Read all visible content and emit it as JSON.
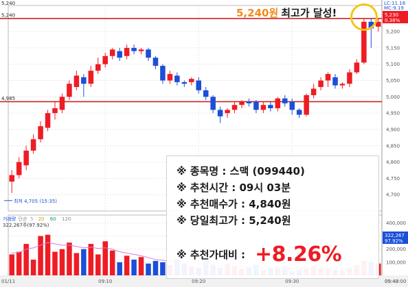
{
  "callout": {
    "price": "5,240원",
    "text": "최고가 달성!"
  },
  "info": {
    "rows": [
      "※ 종목명 : 스맥 (099440)",
      "※ 추천시간 : 09시 03분",
      "※ 추천매수가 : 4,840원",
      "※ 당일최고가 : 5,240원"
    ],
    "return_label": "※ 추천가대비 :",
    "return_value": "+8.26%"
  },
  "header": {
    "right_top": "LC:11.16",
    "right_sub": "MC:9.19",
    "left_top": "5,240"
  },
  "colors": {
    "up": "#ee1c24",
    "down": "#1b4fd8",
    "ref_line": "#cc2222",
    "grid": "#e6e6e6"
  },
  "chart_data": [
    {
      "type": "candlestick",
      "ylim": [
        4650,
        5280
      ],
      "y_ticks": [
        "5,200",
        "5,150",
        "5,100",
        "5,050",
        "5,000",
        "4,950",
        "4,900",
        "4,850",
        "4,800",
        "4,750",
        "4,700"
      ],
      "y_tick_values": [
        5200,
        5150,
        5100,
        5050,
        5000,
        4950,
        4900,
        4850,
        4800,
        4750,
        4700
      ],
      "x_ticks": [
        "01/11",
        "09:10",
        "09:20",
        "09:30",
        "09:40",
        "09:43:00"
      ],
      "x_tick_index": [
        0,
        13,
        26,
        39,
        52,
        60
      ],
      "ref_lines": [
        {
          "value": 5240,
          "label": "5,240"
        },
        {
          "value": 4985,
          "label": "4,985"
        }
      ],
      "right_labels": [
        "5,230",
        "0.38%"
      ],
      "low_annotation": "최저 4,705 (15:35)",
      "low_value": 4705,
      "candles": [
        {
          "o": 4740,
          "c": 4760,
          "h": 4775,
          "l": 4705
        },
        {
          "o": 4760,
          "c": 4800,
          "h": 4815,
          "l": 4750
        },
        {
          "o": 4790,
          "c": 4835,
          "h": 4850,
          "l": 4775
        },
        {
          "o": 4835,
          "c": 4870,
          "h": 4885,
          "l": 4825
        },
        {
          "o": 4870,
          "c": 4910,
          "h": 4925,
          "l": 4860
        },
        {
          "o": 4905,
          "c": 4950,
          "h": 4960,
          "l": 4895
        },
        {
          "o": 4950,
          "c": 4965,
          "h": 4985,
          "l": 4930
        },
        {
          "o": 4960,
          "c": 5000,
          "h": 5010,
          "l": 4950
        },
        {
          "o": 5000,
          "c": 5040,
          "h": 5050,
          "l": 4990
        },
        {
          "o": 5030,
          "c": 5065,
          "h": 5080,
          "l": 5020
        },
        {
          "o": 5060,
          "c": 5040,
          "h": 5070,
          "l": 5000
        },
        {
          "o": 5040,
          "c": 5080,
          "h": 5095,
          "l": 5030
        },
        {
          "o": 5080,
          "c": 5100,
          "h": 5120,
          "l": 5070
        },
        {
          "o": 5100,
          "c": 5125,
          "h": 5135,
          "l": 5090
        },
        {
          "o": 5125,
          "c": 5145,
          "h": 5150,
          "l": 5115
        },
        {
          "o": 5140,
          "c": 5120,
          "h": 5150,
          "l": 5110
        },
        {
          "o": 5125,
          "c": 5150,
          "h": 5160,
          "l": 5115
        },
        {
          "o": 5150,
          "c": 5140,
          "h": 5160,
          "l": 5130
        },
        {
          "o": 5140,
          "c": 5145,
          "h": 5150,
          "l": 5130
        },
        {
          "o": 5145,
          "c": 5120,
          "h": 5150,
          "l": 5110
        },
        {
          "o": 5120,
          "c": 5095,
          "h": 5125,
          "l": 5085
        },
        {
          "o": 5095,
          "c": 5050,
          "h": 5100,
          "l": 5040
        },
        {
          "o": 5050,
          "c": 5070,
          "h": 5080,
          "l": 5040
        },
        {
          "o": 5065,
          "c": 5045,
          "h": 5075,
          "l": 5035
        },
        {
          "o": 5045,
          "c": 5040,
          "h": 5050,
          "l": 5030
        },
        {
          "o": 5045,
          "c": 5055,
          "h": 5060,
          "l": 5035
        },
        {
          "o": 5050,
          "c": 5020,
          "h": 5060,
          "l": 5010
        },
        {
          "o": 5020,
          "c": 5000,
          "h": 5030,
          "l": 4990
        },
        {
          "o": 5000,
          "c": 4960,
          "h": 5005,
          "l": 4950
        },
        {
          "o": 4960,
          "c": 4940,
          "h": 4970,
          "l": 4920
        },
        {
          "o": 4950,
          "c": 4960,
          "h": 4965,
          "l": 4935
        },
        {
          "o": 4960,
          "c": 4975,
          "h": 4985,
          "l": 4950
        },
        {
          "o": 4975,
          "c": 4985,
          "h": 4990,
          "l": 4965
        },
        {
          "o": 4985,
          "c": 4980,
          "h": 4995,
          "l": 4970
        },
        {
          "o": 4985,
          "c": 4960,
          "h": 4990,
          "l": 4950
        },
        {
          "o": 4960,
          "c": 4975,
          "h": 4985,
          "l": 4950
        },
        {
          "o": 4975,
          "c": 4965,
          "h": 4985,
          "l": 4955
        },
        {
          "o": 4965,
          "c": 4995,
          "h": 5000,
          "l": 4955
        },
        {
          "o": 4995,
          "c": 4980,
          "h": 5005,
          "l": 4970
        },
        {
          "o": 4985,
          "c": 4960,
          "h": 4995,
          "l": 4945
        },
        {
          "o": 4960,
          "c": 4945,
          "h": 4965,
          "l": 4935
        },
        {
          "o": 4945,
          "c": 5005,
          "h": 5010,
          "l": 4940
        },
        {
          "o": 5005,
          "c": 5025,
          "h": 5040,
          "l": 4995
        },
        {
          "o": 5030,
          "c": 5050,
          "h": 5060,
          "l": 5020
        },
        {
          "o": 5050,
          "c": 5070,
          "h": 5075,
          "l": 5030
        },
        {
          "o": 5060,
          "c": 5035,
          "h": 5070,
          "l": 5025
        },
        {
          "o": 5035,
          "c": 5040,
          "h": 5045,
          "l": 5025
        },
        {
          "o": 5040,
          "c": 5075,
          "h": 5085,
          "l": 5030
        },
        {
          "o": 5075,
          "c": 5105,
          "h": 5115,
          "l": 5070
        },
        {
          "o": 5105,
          "c": 5230,
          "h": 5240,
          "l": 5100
        },
        {
          "o": 5230,
          "c": 5210,
          "h": 5240,
          "l": 5150
        },
        {
          "o": 5215,
          "c": 5230,
          "h": 5240,
          "l": 5200
        }
      ]
    },
    {
      "type": "bar",
      "name": "volume",
      "legend": [
        "거래량",
        "단순",
        "5",
        "20",
        "60",
        "120"
      ],
      "header_value": "322,267주(97.92%)",
      "ylim": [
        0,
        460000
      ],
      "y_ticks": [
        "400,000",
        "300,000",
        "200,000",
        "100,000"
      ],
      "y_tick_values": [
        400000,
        300000,
        200000,
        100000
      ],
      "right_labels": [
        "322,267",
        "97.92%"
      ],
      "values": [
        160000,
        180000,
        240000,
        120000,
        300000,
        310000,
        180000,
        200000,
        250000,
        170000,
        200000,
        240000,
        160000,
        260000,
        190000,
        100000,
        150000,
        120000,
        140000,
        90000,
        110000,
        100000,
        80000,
        120000,
        90000,
        70000,
        60000,
        110000,
        80000,
        60000,
        90000,
        70000,
        50000,
        60000,
        80000,
        40000,
        55000,
        60000,
        70000,
        30000,
        40000,
        55000,
        70000,
        60000,
        50000,
        40000,
        35000,
        60000,
        80000,
        110000,
        100000,
        90000
      ],
      "ma5": [
        170000,
        175000,
        200000,
        210000,
        230000,
        250000,
        240000,
        230000,
        230000,
        220000,
        210000,
        215000,
        205000,
        210000,
        200000,
        180000,
        170000,
        160000,
        150000,
        135000,
        120000,
        115000,
        110000,
        105000,
        100000,
        95000,
        85000,
        85000,
        80000,
        75000,
        78000,
        72000,
        68000,
        65000,
        62000,
        58000,
        57000,
        55000,
        56000,
        52000,
        50000,
        52000,
        53000,
        55000,
        55000,
        52000,
        50000,
        54000,
        60000,
        70000,
        80000,
        90000
      ]
    }
  ]
}
